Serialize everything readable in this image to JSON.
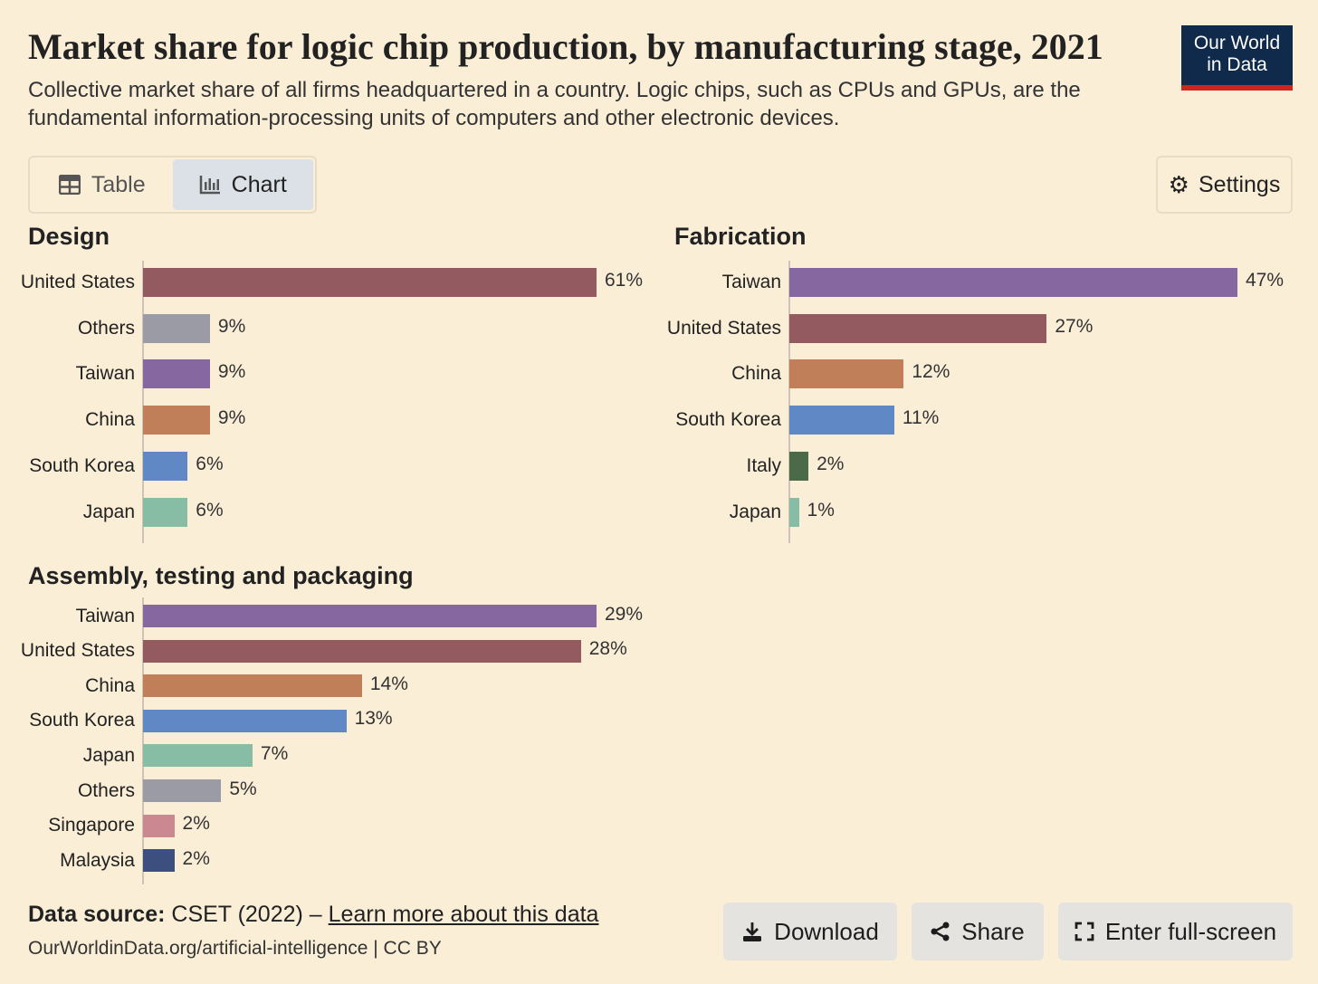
{
  "header": {
    "title": "Market share for logic chip production, by manufacturing stage, 2021",
    "subtitle": "Collective market share of all firms headquartered in a country. Logic chips, such as CPUs and GPUs, are the fundamental information-processing units of computers and other electronic devices.",
    "logo_line1": "Our World",
    "logo_line2": "in Data"
  },
  "tabs": {
    "table": "Table",
    "chart": "Chart"
  },
  "settings": "Settings",
  "colors": {
    "United States": "#935a5f",
    "Others": "#9b9ba6",
    "Taiwan": "#8767a0",
    "China": "#c17f59",
    "South Korea": "#6088c5",
    "Japan": "#87bda4",
    "Italy": "#4b6a48",
    "Singapore": "#cc8891",
    "Malaysia": "#3d4f7e"
  },
  "chart_data": [
    {
      "type": "bar",
      "title": "Design",
      "unit": "%",
      "categories": [
        "United States",
        "Others",
        "Taiwan",
        "China",
        "South Korea",
        "Japan"
      ],
      "values": [
        61,
        9,
        9,
        9,
        6,
        6
      ]
    },
    {
      "type": "bar",
      "title": "Fabrication",
      "unit": "%",
      "categories": [
        "Taiwan",
        "United States",
        "China",
        "South Korea",
        "Italy",
        "Japan"
      ],
      "values": [
        47,
        27,
        12,
        11,
        2,
        1
      ]
    },
    {
      "type": "bar",
      "title": "Assembly, testing and packaging",
      "unit": "%",
      "categories": [
        "Taiwan",
        "United States",
        "China",
        "South Korea",
        "Japan",
        "Others",
        "Singapore",
        "Malaysia"
      ],
      "values": [
        29,
        28,
        14,
        13,
        7,
        5,
        2,
        2
      ]
    }
  ],
  "footer": {
    "source_label": "Data source:",
    "source": "CSET (2022) –",
    "learn_more": "Learn more about this data",
    "url": "OurWorldinData.org/artificial-intelligence | CC BY",
    "download": "Download",
    "share": "Share",
    "fullscreen": "Enter full-screen"
  }
}
